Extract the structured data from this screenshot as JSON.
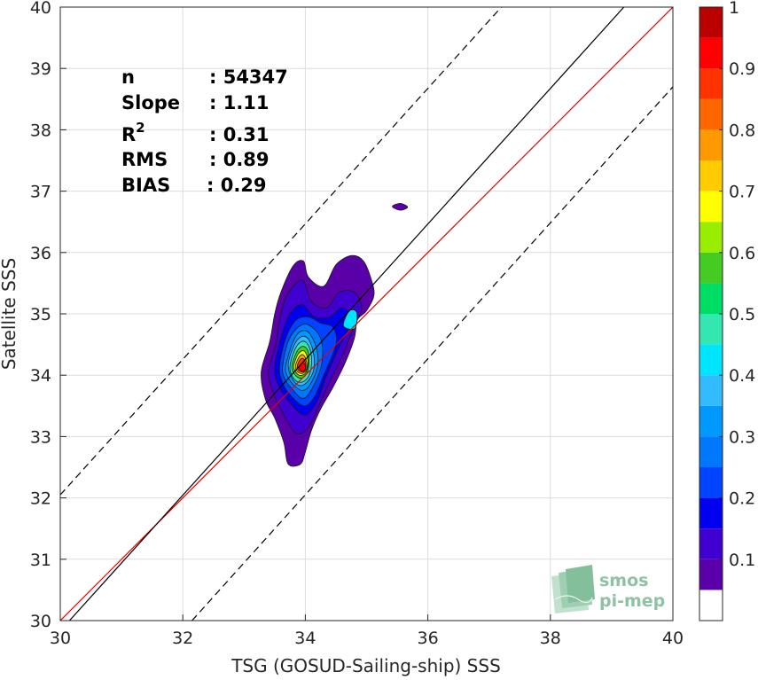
{
  "chart_data": {
    "type": "contour",
    "xlabel": "TSG (GOSUD-Sailing-ship) SSS",
    "ylabel": "Satellite SSS",
    "xlim": [
      30,
      40
    ],
    "ylim": [
      30,
      40
    ],
    "x_ticks": [
      "30",
      "32",
      "34",
      "36",
      "38",
      "40"
    ],
    "y_ticks": [
      "30",
      "31",
      "32",
      "33",
      "34",
      "35",
      "36",
      "37",
      "38",
      "39",
      "40"
    ],
    "grid": true,
    "lines": {
      "identity": {
        "from": [
          30,
          30
        ],
        "to": [
          40,
          40
        ],
        "color": "#e60000",
        "style": "solid"
      },
      "regression": {
        "from": [
          30.15,
          30
        ],
        "to": [
          39.2,
          40
        ],
        "color": "#000000",
        "style": "solid"
      },
      "upper_bound": {
        "from": [
          30,
          32.05
        ],
        "to": [
          37.2,
          40
        ],
        "color": "#000000",
        "style": "dashed"
      },
      "lower_bound": {
        "from": [
          32.15,
          30
        ],
        "to": [
          40,
          38.7
        ],
        "color": "#000000",
        "style": "dashed"
      }
    },
    "stats": [
      {
        "label": "n",
        "value": ": 54347"
      },
      {
        "label": "Slope",
        "value": ": 1.11"
      },
      {
        "label": "R",
        "sup": "2",
        "value": ": 0.31"
      },
      {
        "label": "RMS",
        "value": ": 0.89"
      },
      {
        "label": "BIAS",
        "value": ": 0.29"
      }
    ],
    "colorbar": {
      "range": [
        0,
        1
      ],
      "levels": [
        0.05,
        0.1,
        0.15,
        0.2,
        0.25,
        0.3,
        0.35,
        0.4,
        0.45,
        0.5,
        0.55,
        0.6,
        0.65,
        0.7,
        0.75,
        0.8,
        0.85,
        0.9,
        0.95
      ],
      "tick_values": [
        0.1,
        0.2,
        0.3,
        0.4,
        0.5,
        0.6,
        0.7,
        0.8,
        0.9,
        1
      ],
      "tick_labels": [
        "0.1",
        "0.2",
        "0.3",
        "0.4",
        "0.5",
        "0.6",
        "0.7",
        "0.8",
        "0.9",
        "1"
      ],
      "colors": [
        "#ffffff",
        "#5a00a8",
        "#3f00d0",
        "#0000ee",
        "#0044ff",
        "#0077ff",
        "#0099ff",
        "#33bbff",
        "#00e5ff",
        "#33e8b0",
        "#00dd66",
        "#44cc22",
        "#99ee00",
        "#ffff00",
        "#ffcc00",
        "#ff9900",
        "#ff6600",
        "#ff3300",
        "#ff0000",
        "#bb0000",
        "#880000"
      ]
    },
    "contours": [
      {
        "level": 0.05,
        "points": [
          [
            33.28,
            34.05
          ],
          [
            33.42,
            34.55
          ],
          [
            33.5,
            35.0
          ],
          [
            33.6,
            35.35
          ],
          [
            33.8,
            35.78
          ],
          [
            33.97,
            35.86
          ],
          [
            34.05,
            35.6
          ],
          [
            34.3,
            35.45
          ],
          [
            34.5,
            35.8
          ],
          [
            34.75,
            35.95
          ],
          [
            34.95,
            35.86
          ],
          [
            35.08,
            35.55
          ],
          [
            35.12,
            35.3
          ],
          [
            35.0,
            35.05
          ],
          [
            34.85,
            34.9
          ],
          [
            34.8,
            34.6
          ],
          [
            34.65,
            34.2
          ],
          [
            34.45,
            33.8
          ],
          [
            34.25,
            33.45
          ],
          [
            34.1,
            33.1
          ],
          [
            34.0,
            32.75
          ],
          [
            33.92,
            32.55
          ],
          [
            33.72,
            32.55
          ],
          [
            33.65,
            32.9
          ],
          [
            33.5,
            33.3
          ],
          [
            33.35,
            33.6
          ]
        ]
      },
      {
        "level": 0.1,
        "points": [
          [
            33.4,
            34.05
          ],
          [
            33.52,
            34.5
          ],
          [
            33.58,
            34.9
          ],
          [
            33.7,
            35.3
          ],
          [
            33.95,
            35.55
          ],
          [
            34.1,
            35.2
          ],
          [
            34.35,
            35.1
          ],
          [
            34.55,
            35.35
          ],
          [
            34.8,
            35.35
          ],
          [
            34.92,
            35.1
          ],
          [
            34.8,
            34.8
          ],
          [
            34.6,
            34.3
          ],
          [
            34.4,
            33.9
          ],
          [
            34.22,
            33.5
          ],
          [
            34.05,
            33.15
          ],
          [
            33.85,
            33.05
          ],
          [
            33.65,
            33.35
          ],
          [
            33.5,
            33.65
          ]
        ]
      },
      {
        "level": 0.15,
        "points": [
          [
            33.5,
            34.1
          ],
          [
            33.6,
            34.6
          ],
          [
            33.75,
            35.0
          ],
          [
            33.95,
            35.15
          ],
          [
            34.15,
            34.95
          ],
          [
            34.4,
            34.95
          ],
          [
            34.6,
            35.1
          ],
          [
            34.75,
            34.9
          ],
          [
            34.55,
            34.45
          ],
          [
            34.35,
            34.0
          ],
          [
            34.18,
            33.55
          ],
          [
            33.98,
            33.35
          ],
          [
            33.75,
            33.55
          ],
          [
            33.58,
            33.8
          ]
        ]
      },
      {
        "level": 0.2,
        "points": [
          [
            33.58,
            34.15
          ],
          [
            33.68,
            34.6
          ],
          [
            33.85,
            34.9
          ],
          [
            34.05,
            34.95
          ],
          [
            34.25,
            34.85
          ],
          [
            34.45,
            34.78
          ],
          [
            34.5,
            34.5
          ],
          [
            34.3,
            34.0
          ],
          [
            34.15,
            33.65
          ],
          [
            33.98,
            33.5
          ],
          [
            33.75,
            33.68
          ],
          [
            33.62,
            33.9
          ]
        ]
      },
      {
        "level": 0.25,
        "points": [
          [
            33.63,
            34.15
          ],
          [
            33.72,
            34.55
          ],
          [
            33.88,
            34.78
          ],
          [
            34.05,
            34.82
          ],
          [
            34.25,
            34.6
          ],
          [
            34.27,
            34.2
          ],
          [
            34.12,
            33.8
          ],
          [
            33.96,
            33.62
          ],
          [
            33.78,
            33.78
          ],
          [
            33.66,
            33.95
          ]
        ]
      },
      {
        "level": 0.3,
        "points": [
          [
            33.68,
            34.15
          ],
          [
            33.78,
            34.5
          ],
          [
            33.9,
            34.7
          ],
          [
            34.05,
            34.7
          ],
          [
            34.18,
            34.45
          ],
          [
            34.2,
            34.15
          ],
          [
            34.08,
            33.85
          ],
          [
            33.95,
            33.75
          ],
          [
            33.8,
            33.85
          ],
          [
            33.7,
            34.0
          ]
        ]
      },
      {
        "level": 0.35,
        "points": [
          [
            33.72,
            34.15
          ],
          [
            33.8,
            34.45
          ],
          [
            33.92,
            34.62
          ],
          [
            34.04,
            34.6
          ],
          [
            34.13,
            34.38
          ],
          [
            34.14,
            34.1
          ],
          [
            34.04,
            33.9
          ],
          [
            33.92,
            33.83
          ],
          [
            33.8,
            33.92
          ]
        ]
      },
      {
        "level": 0.4,
        "points": [
          [
            34.62,
            34.82
          ],
          [
            34.72,
            35.05
          ],
          [
            34.84,
            35.02
          ],
          [
            34.82,
            34.78
          ],
          [
            34.72,
            34.75
          ]
        ]
      },
      {
        "level": 0.45,
        "points": [
          [
            33.75,
            34.15
          ],
          [
            33.83,
            34.42
          ],
          [
            33.94,
            34.55
          ],
          [
            34.04,
            34.5
          ],
          [
            34.1,
            34.3
          ],
          [
            34.08,
            34.05
          ],
          [
            33.98,
            33.9
          ],
          [
            33.86,
            33.9
          ],
          [
            33.78,
            34.0
          ]
        ]
      },
      {
        "level": 0.55,
        "points": [
          [
            33.78,
            34.15
          ],
          [
            33.86,
            34.38
          ],
          [
            33.96,
            34.47
          ],
          [
            34.04,
            34.4
          ],
          [
            34.06,
            34.2
          ],
          [
            34.02,
            34.02
          ],
          [
            33.92,
            33.95
          ],
          [
            33.82,
            34.02
          ]
        ]
      },
      {
        "level": 0.65,
        "points": [
          [
            33.81,
            34.15
          ],
          [
            33.88,
            34.34
          ],
          [
            33.97,
            34.4
          ],
          [
            34.03,
            34.3
          ],
          [
            34.04,
            34.15
          ],
          [
            33.99,
            34.02
          ],
          [
            33.9,
            34.0
          ],
          [
            33.84,
            34.06
          ]
        ]
      },
      {
        "level": 0.75,
        "points": [
          [
            33.84,
            34.15
          ],
          [
            33.9,
            34.3
          ],
          [
            33.97,
            34.33
          ],
          [
            34.02,
            34.22
          ],
          [
            34.02,
            34.1
          ],
          [
            33.96,
            34.03
          ],
          [
            33.88,
            34.05
          ]
        ]
      },
      {
        "level": 0.85,
        "points": [
          [
            33.87,
            34.15
          ],
          [
            33.92,
            34.26
          ],
          [
            33.98,
            34.26
          ],
          [
            34.01,
            34.15
          ],
          [
            33.98,
            34.06
          ],
          [
            33.9,
            34.07
          ]
        ]
      },
      {
        "level": 0.9,
        "points": [
          [
            33.9,
            34.12
          ],
          [
            33.94,
            34.2
          ],
          [
            33.99,
            34.18
          ],
          [
            34.0,
            34.1
          ],
          [
            33.95,
            34.06
          ]
        ]
      },
      {
        "level": 0.05,
        "points": [
          [
            35.42,
            36.75
          ],
          [
            35.55,
            36.8
          ],
          [
            35.67,
            36.74
          ],
          [
            35.55,
            36.69
          ]
        ]
      }
    ]
  },
  "logo": {
    "line1": "smos",
    "line2": "pi-mep"
  }
}
